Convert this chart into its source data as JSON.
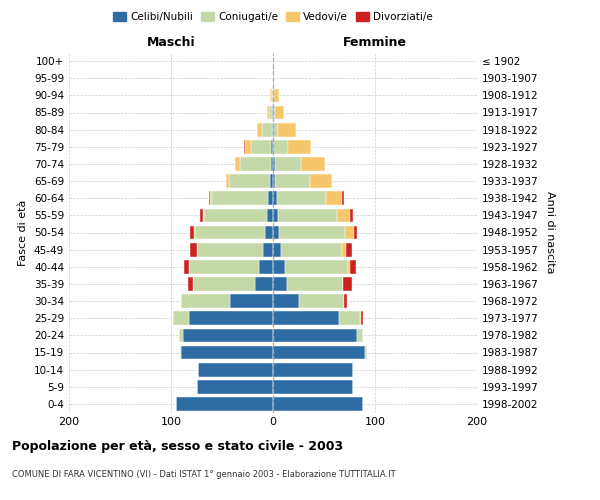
{
  "age_groups": [
    "0-4",
    "5-9",
    "10-14",
    "15-19",
    "20-24",
    "25-29",
    "30-34",
    "35-39",
    "40-44",
    "45-49",
    "50-54",
    "55-59",
    "60-64",
    "65-69",
    "70-74",
    "75-79",
    "80-84",
    "85-89",
    "90-94",
    "95-99",
    "100+"
  ],
  "birth_years": [
    "1998-2002",
    "1993-1997",
    "1988-1992",
    "1983-1987",
    "1978-1982",
    "1973-1977",
    "1968-1972",
    "1963-1967",
    "1958-1962",
    "1953-1957",
    "1948-1952",
    "1943-1947",
    "1938-1942",
    "1933-1937",
    "1928-1932",
    "1923-1927",
    "1918-1922",
    "1913-1917",
    "1908-1912",
    "1903-1907",
    "≤ 1902"
  ],
  "male_celibi": [
    95,
    75,
    74,
    90,
    88,
    82,
    42,
    18,
    14,
    10,
    8,
    6,
    5,
    3,
    2,
    2,
    1,
    1,
    0,
    0,
    0
  ],
  "male_coniugati": [
    0,
    0,
    0,
    1,
    4,
    16,
    48,
    60,
    68,
    65,
    68,
    62,
    55,
    40,
    30,
    20,
    10,
    3,
    2,
    0,
    0
  ],
  "male_vedovi": [
    0,
    0,
    0,
    0,
    0,
    0,
    0,
    0,
    0,
    0,
    1,
    1,
    2,
    3,
    5,
    5,
    5,
    2,
    1,
    0,
    0
  ],
  "male_divorziati": [
    0,
    0,
    0,
    0,
    0,
    0,
    0,
    5,
    5,
    6,
    4,
    3,
    1,
    0,
    0,
    1,
    0,
    0,
    0,
    0,
    0
  ],
  "female_nubili": [
    88,
    78,
    78,
    90,
    82,
    65,
    25,
    14,
    12,
    8,
    6,
    5,
    4,
    2,
    2,
    0,
    0,
    0,
    0,
    0,
    0
  ],
  "female_coniugate": [
    0,
    0,
    0,
    2,
    6,
    20,
    45,
    55,
    62,
    60,
    65,
    58,
    48,
    34,
    25,
    15,
    5,
    2,
    1,
    0,
    0
  ],
  "female_vedove": [
    0,
    0,
    0,
    0,
    0,
    1,
    0,
    0,
    1,
    4,
    8,
    12,
    16,
    22,
    24,
    22,
    18,
    9,
    5,
    1,
    1
  ],
  "female_divorziate": [
    0,
    0,
    0,
    0,
    0,
    2,
    3,
    8,
    6,
    5,
    3,
    3,
    2,
    0,
    0,
    0,
    0,
    0,
    0,
    0,
    0
  ],
  "color_celibi": "#2E6DA4",
  "color_coniugati": "#C5D9A8",
  "color_vedovi": "#F5C76A",
  "color_divorziati": "#CC2222",
  "xlim": 200,
  "title": "Popolazione per età, sesso e stato civile - 2003",
  "subtitle": "COMUNE DI FARA VICENTINO (VI) - Dati ISTAT 1° gennaio 2003 - Elaborazione TUTTITALIA.IT",
  "label_maschi": "Maschi",
  "label_femmine": "Femmine",
  "label_fasce": "Fasce di età",
  "label_anni": "Anni di nascita",
  "legend_labels": [
    "Celibi/Nubili",
    "Coniugati/e",
    "Vedovi/e",
    "Divorziati/e"
  ],
  "bg_color": "#ffffff",
  "grid_color": "#cccccc"
}
